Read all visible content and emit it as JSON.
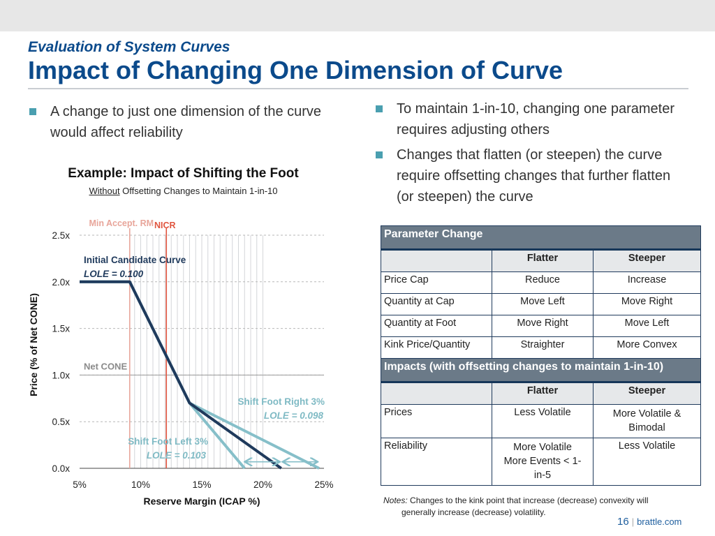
{
  "header": {
    "subtitle": "Evaluation of System Curves",
    "title": "Impact of Changing One Dimension of Curve"
  },
  "bullets": {
    "left": "A change to just one dimension of the curve would affect reliability",
    "right": [
      "To maintain 1-in-10, changing one parameter requires adjusting others",
      "Changes that flatten (or steepen) the curve require offsetting changes that further flatten (or steepen) the curve"
    ]
  },
  "example": {
    "title": "Example: Impact of Shifting the Foot",
    "subtitle_underlined": "Without",
    "subtitle_rest": " Offsetting Changes to Maintain 1-in-10"
  },
  "chart_data": {
    "type": "line",
    "xlabel": "Reserve Margin (ICAP %)",
    "ylabel": "Price (% of Net CONE)",
    "xlim": [
      5,
      25
    ],
    "ylim": [
      0,
      2.5
    ],
    "x_ticks": [
      5,
      10,
      15,
      20,
      25
    ],
    "x_tick_labels": [
      "5%",
      "10%",
      "15%",
      "20%",
      "25%"
    ],
    "y_ticks": [
      0,
      0.5,
      1.0,
      1.5,
      2.0,
      2.5
    ],
    "y_tick_labels": [
      "0.0x",
      "0.5x",
      "1.0x",
      "1.5x",
      "2.0x",
      "2.5x"
    ],
    "vertical_gridlines": [
      9.5,
      10,
      10.5,
      11,
      11.5,
      12,
      12.5,
      13,
      13.5,
      14,
      14.5,
      15,
      15.5,
      16,
      16.5,
      17,
      17.5,
      18,
      18.5,
      19,
      19.5,
      20
    ],
    "reference_lines": [
      {
        "label": "Min Accept. RM",
        "x": 9.1,
        "color": "#e8a59a"
      },
      {
        "label": "NICR",
        "x": 12.1,
        "color": "#e0553f"
      }
    ],
    "net_cone": {
      "label": "Net CONE",
      "y": 1.0
    },
    "series": [
      {
        "name": "Shift Foot Right 3%",
        "lole": "LOLE = 0.098",
        "color": "#86bfc9",
        "x": [
          5,
          9.1,
          14,
          24.6
        ],
        "y": [
          2.0,
          2.0,
          0.7,
          0
        ]
      },
      {
        "name": "Shift Foot Left 3%",
        "lole": "LOLE = 0.103",
        "color": "#86bfc9",
        "x": [
          5,
          9.1,
          14,
          18.5
        ],
        "y": [
          2.0,
          2.0,
          0.7,
          0
        ]
      },
      {
        "name": "Initial Candidate Curve",
        "lole": "LOLE = 0.100",
        "color": "#1f3a5c",
        "x": [
          5,
          9.1,
          14,
          21.5
        ],
        "y": [
          2.0,
          2.0,
          0.7,
          0
        ]
      }
    ],
    "arrows": [
      {
        "y": 0.04,
        "from": 18.6,
        "to": 21.3
      },
      {
        "y": 0.04,
        "from": 21.7,
        "to": 24.4
      }
    ]
  },
  "table": {
    "section1": "Parameter Change",
    "columns": [
      "Flatter",
      "Steeper"
    ],
    "rows1": [
      {
        "label": "Price Cap",
        "flatter": "Reduce",
        "steeper": "Increase"
      },
      {
        "label": "Quantity at Cap",
        "flatter": "Move Left",
        "steeper": "Move Right"
      },
      {
        "label": "Quantity at Foot",
        "flatter": "Move Right",
        "steeper": "Move Left"
      },
      {
        "label": "Kink Price/Quantity",
        "flatter": "Straighter",
        "steeper": "More Convex"
      }
    ],
    "section2": "Impacts (with offsetting changes to maintain 1-in-10)",
    "rows2": [
      {
        "label": "Prices",
        "flatter": "Less Volatile",
        "steeper": "More Volatile & Bimodal"
      },
      {
        "label": "Reliability",
        "flatter": "More Volatile More Events < 1-in-5",
        "steeper": "Less Volatile"
      }
    ]
  },
  "notes": {
    "label": "Notes:",
    "line1": " Changes to the kink point that increase (decrease) convexity will",
    "line2": "generally increase (decrease) volatility."
  },
  "footer": {
    "page": "16",
    "site": "brattle.com"
  }
}
